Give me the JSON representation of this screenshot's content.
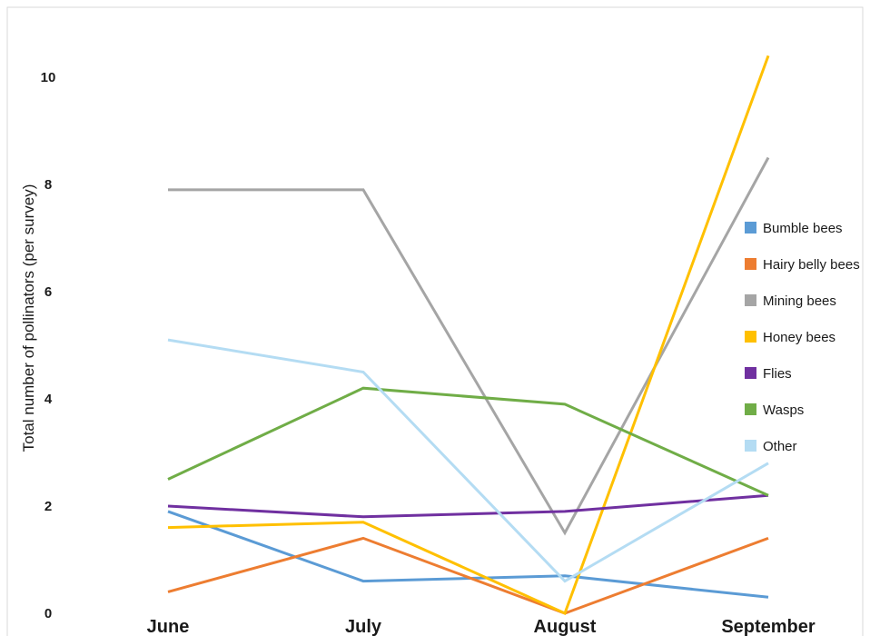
{
  "chart_data": {
    "type": "line",
    "title": "",
    "xlabel": "",
    "ylabel": "Total number of pollinators (per survey)",
    "categories": [
      "June",
      "July",
      "August",
      "September"
    ],
    "ylim": [
      0,
      10.5
    ],
    "yticks": [
      "0",
      "2",
      "4",
      "6",
      "8",
      "10"
    ],
    "grid": false,
    "legend_position": "right",
    "series": [
      {
        "name": "Bumble bees",
        "color": "#5b9bd5",
        "values": [
          1.9,
          0.6,
          0.7,
          0.3
        ]
      },
      {
        "name": "Hairy belly bees",
        "color": "#ed7d31",
        "values": [
          0.4,
          1.4,
          0.0,
          1.4
        ]
      },
      {
        "name": "Mining bees",
        "color": "#a5a5a5",
        "values": [
          7.9,
          7.9,
          1.5,
          8.5
        ]
      },
      {
        "name": "Honey bees",
        "color": "#ffc000",
        "values": [
          1.6,
          1.7,
          0.0,
          10.4
        ]
      },
      {
        "name": "Flies",
        "color": "#7030a0",
        "values": [
          2.0,
          1.8,
          1.9,
          2.2
        ]
      },
      {
        "name": "Wasps",
        "color": "#70ad47",
        "values": [
          2.5,
          4.2,
          3.9,
          2.2
        ]
      },
      {
        "name": "Other",
        "color": "#b4dcf3",
        "values": [
          5.1,
          4.5,
          0.6,
          2.8
        ]
      }
    ]
  }
}
